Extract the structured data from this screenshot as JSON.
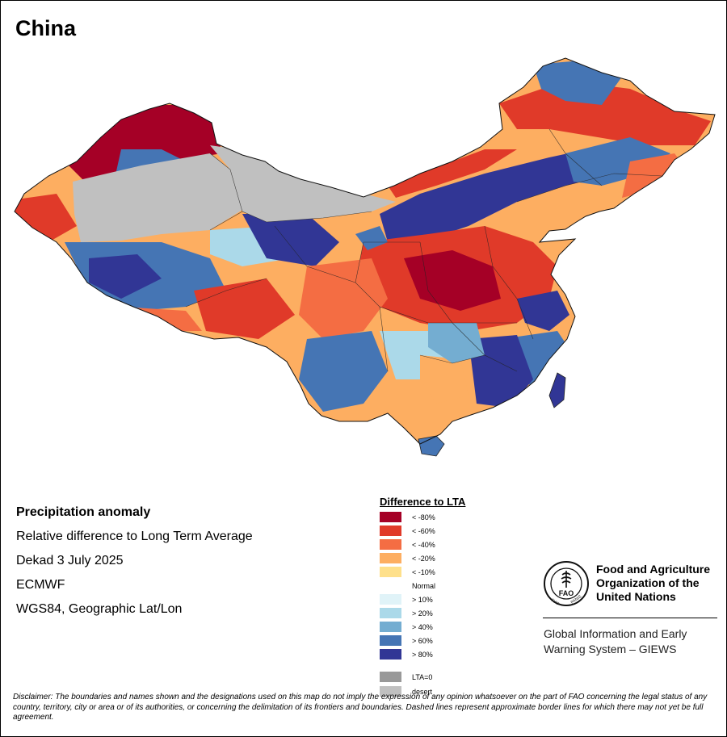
{
  "map": {
    "title": "China",
    "colors": {
      "lt80": "#a50026",
      "lt60": "#e03a29",
      "lt40": "#f46d43",
      "lt20": "#fdae61",
      "lt10": "#fee08b",
      "normal": "#ffffff",
      "gt10": "#e0f3f8",
      "gt20": "#abd9e9",
      "gt40": "#74add1",
      "gt60": "#4575b4",
      "gt80": "#313695",
      "lta0": "#999999",
      "desert": "#c0c0c0"
    }
  },
  "info": {
    "heading": "Precipitation anomaly",
    "subtitle": "Relative difference to Long Term Average",
    "period": "Dekad 3 July 2025",
    "source": "ECMWF",
    "projection": "WGS84, Geographic Lat/Lon"
  },
  "legend": {
    "title": "Difference to LTA",
    "items": [
      {
        "label": "< -80%",
        "color": "#a50026"
      },
      {
        "label": "< -60%",
        "color": "#e03a29"
      },
      {
        "label": "< -40%",
        "color": "#f46d43"
      },
      {
        "label": "< -20%",
        "color": "#fdae61"
      },
      {
        "label": "< -10%",
        "color": "#fee08b"
      },
      {
        "label": "Normal",
        "color": "#ffffff"
      },
      {
        "label": "> 10%",
        "color": "#e0f3f8"
      },
      {
        "label": "> 20%",
        "color": "#abd9e9"
      },
      {
        "label": "> 40%",
        "color": "#74add1"
      },
      {
        "label": "> 60%",
        "color": "#4575b4"
      },
      {
        "label": "> 80%",
        "color": "#313695"
      },
      {
        "label": "LTA=0",
        "color": "#999999"
      },
      {
        "label": "desert",
        "color": "#c0c0c0"
      }
    ]
  },
  "org": {
    "logo_text": "FAO",
    "logo_ring_left": "FIAT",
    "logo_ring_right": "PANIS",
    "name_line1": "Food and Agriculture",
    "name_line2": "Organization of the",
    "name_line3": "United Nations",
    "system_line1": "Global Information and Early",
    "system_line2": "Warning System – GIEWS"
  },
  "disclaimer": "Disclaimer: The boundaries and names shown and the designations used on this map do not imply the expression of any opinion whatsoever on the part of FAO concerning the legal status of any country, territory, city or area or of its authorities, or concerning the delimitation of its frontiers and boundaries. Dashed lines represent approximate border lines for which there may not yet be full agreement."
}
